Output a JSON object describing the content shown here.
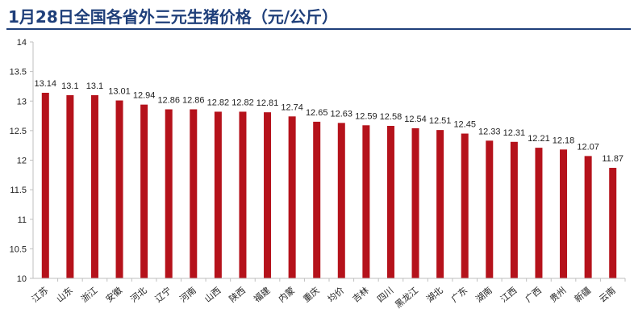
{
  "title": "1月28日全国各省外三元生猪价格（元/公斤）",
  "colors": {
    "bar": "#b5121b",
    "title": "#1f3f7a",
    "axis": "#bfbfbf"
  },
  "chart_data": {
    "type": "bar",
    "title": "1月28日全国各省外三元生猪价格（元/公斤）",
    "xlabel": "",
    "ylabel": "",
    "ylim": [
      10,
      14
    ],
    "yticks": [
      "14",
      "13.5",
      "13",
      "12.5",
      "12",
      "11.5",
      "11",
      "10.5",
      "10"
    ],
    "grid": false,
    "categories": [
      "江苏",
      "山东",
      "浙江",
      "安徽",
      "河北",
      "辽宁",
      "河南",
      "山西",
      "陕西",
      "福建",
      "内蒙",
      "重庆",
      "均价",
      "吉林",
      "四川",
      "黑龙江",
      "湖北",
      "广东",
      "湖南",
      "江西",
      "广西",
      "贵州",
      "新疆",
      "云南"
    ],
    "values": [
      13.14,
      13.1,
      13.1,
      13.01,
      12.94,
      12.86,
      12.86,
      12.82,
      12.82,
      12.81,
      12.74,
      12.65,
      12.63,
      12.59,
      12.58,
      12.54,
      12.51,
      12.45,
      12.33,
      12.31,
      12.21,
      12.18,
      12.07,
      11.87
    ],
    "data_labels": [
      "13.14",
      "13.1",
      "13.1",
      "13.01",
      "12.94",
      "12.86",
      "12.86",
      "12.82",
      "12.82",
      "12.81",
      "12.74",
      "12.65",
      "12.63",
      "12.59",
      "12.58",
      "12.54",
      "12.51",
      "12.45",
      "12.33",
      "12.31",
      "12.21",
      "12.18",
      "12.07",
      "11.87"
    ]
  }
}
